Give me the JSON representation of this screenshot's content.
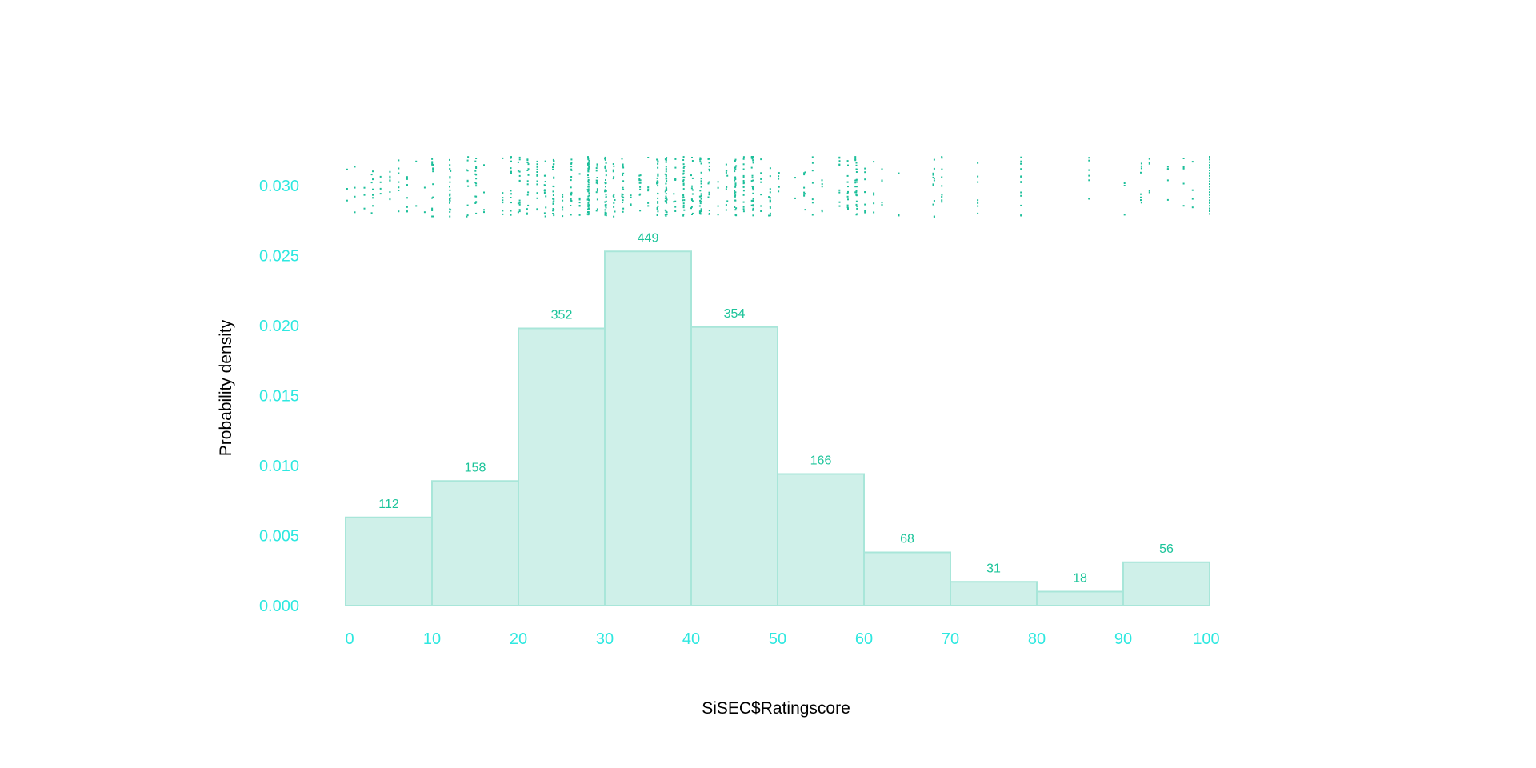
{
  "chart_data": {
    "type": "bar",
    "title": "",
    "xlabel": "SiSEC$Ratingscore",
    "ylabel": "Probability density",
    "bins": [
      [
        0,
        10
      ],
      [
        10,
        20
      ],
      [
        20,
        30
      ],
      [
        30,
        40
      ],
      [
        40,
        50
      ],
      [
        50,
        60
      ],
      [
        60,
        70
      ],
      [
        70,
        80
      ],
      [
        80,
        90
      ],
      [
        90,
        100
      ]
    ],
    "counts": [
      112,
      158,
      352,
      449,
      354,
      166,
      68,
      31,
      18,
      56
    ],
    "density": [
      0.0063,
      0.0089,
      0.0198,
      0.0253,
      0.0199,
      0.0094,
      0.0038,
      0.0017,
      0.001,
      0.0031
    ],
    "x_ticks": [
      "0",
      "10",
      "20",
      "30",
      "40",
      "50",
      "60",
      "70",
      "80",
      "90",
      "100"
    ],
    "y_ticks": [
      "0.000",
      "0.005",
      "0.010",
      "0.015",
      "0.020",
      "0.025",
      "0.030"
    ],
    "xlim": [
      0,
      100
    ],
    "ylim": [
      0,
      0.03
    ],
    "grid": false,
    "rug": true,
    "colors": {
      "bar_fill": "#cff0e9",
      "bar_stroke": "#a8e6d9",
      "bar_label": "#1cc49a",
      "rug": "#1cbf9a",
      "tick_label": "#2ee8e0",
      "axis_title": "#e0506a"
    }
  }
}
